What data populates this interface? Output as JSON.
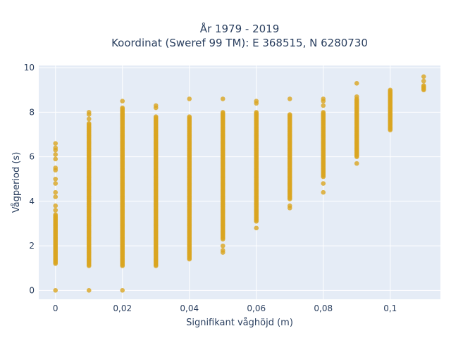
{
  "chart_data": {
    "type": "scatter",
    "title_line1": "År 1979 - 2019",
    "title_line2": "Koordinat (Sweref 99 TM): E 368515, N 6280730",
    "xlabel": "Signifikant våghöjd (m)",
    "ylabel": "Vågperiod (s)",
    "xlim": [
      -0.005,
      0.115
    ],
    "ylim": [
      -0.4,
      10.1
    ],
    "x_ticks": [
      0,
      0.02,
      0.04,
      0.06,
      0.08,
      0.1
    ],
    "x_tick_labels": [
      "0",
      "0,02",
      "0,04",
      "0,06",
      "0,08",
      "0,1"
    ],
    "y_ticks": [
      0,
      2,
      4,
      6,
      8,
      10
    ],
    "y_tick_labels": [
      "0",
      "2",
      "4",
      "6",
      "8",
      "10"
    ],
    "grid": true,
    "legend": "none",
    "colors": {
      "marker": "#DAA520",
      "background": "#E5ECF6",
      "grid": "#ffffff",
      "text": "#2a3f5f"
    },
    "series": [
      {
        "columns": [
          {
            "x": 0.0,
            "range": [
              1.2,
              3.4
            ],
            "points": [
              0.0,
              3.6,
              3.8,
              4.2,
              4.4,
              4.8,
              5.0,
              5.4,
              5.5,
              5.9,
              6.1,
              6.3,
              6.4,
              6.6
            ]
          },
          {
            "x": 0.01,
            "range": [
              1.1,
              7.5
            ],
            "points": [
              0.0,
              7.7,
              7.9,
              8.0
            ]
          },
          {
            "x": 0.02,
            "range": [
              1.1,
              8.2
            ],
            "points": [
              0.0,
              8.5
            ]
          },
          {
            "x": 0.03,
            "range": [
              1.1,
              7.8
            ],
            "points": [
              8.2,
              8.3
            ]
          },
          {
            "x": 0.04,
            "range": [
              1.4,
              7.8
            ],
            "points": [
              8.6
            ]
          },
          {
            "x": 0.05,
            "range": [
              2.3,
              8.0
            ],
            "points": [
              1.7,
              1.8,
              2.0,
              8.6
            ]
          },
          {
            "x": 0.06,
            "range": [
              3.1,
              8.0
            ],
            "points": [
              2.8,
              8.4,
              8.5
            ]
          },
          {
            "x": 0.07,
            "range": [
              4.1,
              7.9
            ],
            "points": [
              3.7,
              3.8,
              8.6
            ]
          },
          {
            "x": 0.08,
            "range": [
              5.1,
              8.0
            ],
            "points": [
              4.4,
              4.8,
              8.3,
              8.5,
              8.6
            ]
          },
          {
            "x": 0.09,
            "range": [
              6.0,
              8.6
            ],
            "points": [
              5.7,
              8.7,
              9.3
            ]
          },
          {
            "x": 0.1,
            "range": [
              7.2,
              9.0
            ],
            "points": []
          },
          {
            "x": 0.11,
            "range": [
              9.0,
              9.2
            ],
            "points": [
              9.4,
              9.6
            ]
          }
        ]
      }
    ]
  }
}
